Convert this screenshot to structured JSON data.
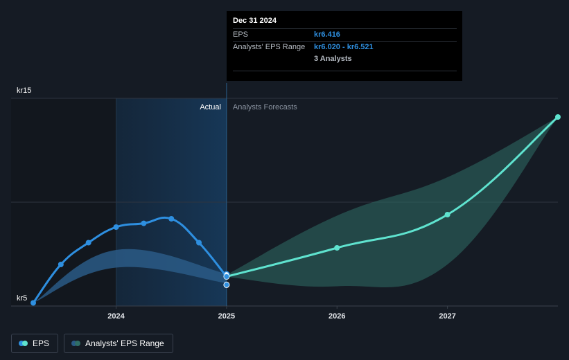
{
  "chart_data": {
    "type": "line",
    "y_unit_prefix": "kr",
    "ylim": [
      5,
      15
    ],
    "yticks": [
      {
        "value": 15,
        "label": "kr15"
      },
      {
        "value": 5,
        "label": "kr5"
      }
    ],
    "xlim": [
      2023.25,
      2028.0
    ],
    "xticks": [
      {
        "value": 2024.0,
        "label": "2024"
      },
      {
        "value": 2025.0,
        "label": "2025"
      },
      {
        "value": 2026.0,
        "label": "2026"
      },
      {
        "value": 2027.0,
        "label": "2027"
      }
    ],
    "divider_x": 2025.0,
    "highlight_start_x": 2024.0,
    "region_labels": {
      "actual": "Actual",
      "forecast": "Analysts Forecasts"
    },
    "series": [
      {
        "name": "EPS",
        "kind": "actual",
        "color": "#2e8fe0",
        "points": [
          [
            2023.25,
            5.15
          ],
          [
            2023.5,
            7.0
          ],
          [
            2023.75,
            8.05
          ],
          [
            2024.0,
            8.8
          ],
          [
            2024.25,
            8.98
          ],
          [
            2024.5,
            9.2
          ],
          [
            2024.75,
            8.05
          ],
          [
            2025.0,
            6.416
          ]
        ]
      },
      {
        "name": "Analysts' EPS Range",
        "kind": "actual-range",
        "color": "#2e8fe0",
        "upper": [
          [
            2023.25,
            5.15
          ],
          [
            2024.0,
            7.7
          ],
          [
            2025.0,
            6.55
          ]
        ],
        "lower": [
          [
            2023.25,
            5.15
          ],
          [
            2024.0,
            6.85
          ],
          [
            2025.0,
            6.1
          ]
        ]
      },
      {
        "name": "EPS Forecast",
        "kind": "forecast",
        "color": "#5fe3cf",
        "points": [
          [
            2025.0,
            6.416
          ],
          [
            2026.0,
            7.8
          ],
          [
            2027.0,
            9.4
          ],
          [
            2028.0,
            14.1
          ]
        ]
      },
      {
        "name": "Analysts' EPS Range (forecast)",
        "kind": "forecast-range",
        "color": "#2f6e66",
        "upper": [
          [
            2025.0,
            6.5
          ],
          [
            2026.0,
            9.35
          ],
          [
            2027.0,
            11.2
          ],
          [
            2028.0,
            14.1
          ]
        ],
        "lower": [
          [
            2025.0,
            6.4
          ],
          [
            2026.0,
            5.95
          ],
          [
            2027.0,
            7.0
          ],
          [
            2028.0,
            14.1
          ]
        ]
      }
    ],
    "extra_markers": [
      6.02,
      6.521
    ],
    "tooltip": {
      "date": "Dec 31 2024",
      "eps_label": "EPS",
      "eps_value": "kr6.416",
      "range_label": "Analysts' EPS Range",
      "range_value": "kr6.020 - kr6.521",
      "analysts": "3 Analysts"
    },
    "legend": [
      {
        "label": "EPS",
        "colors": [
          "#2e8fe0",
          "#5fe3cf"
        ]
      },
      {
        "label": "Analysts' EPS Range",
        "colors": [
          "#2a5a86",
          "#2f6e66"
        ]
      }
    ]
  }
}
